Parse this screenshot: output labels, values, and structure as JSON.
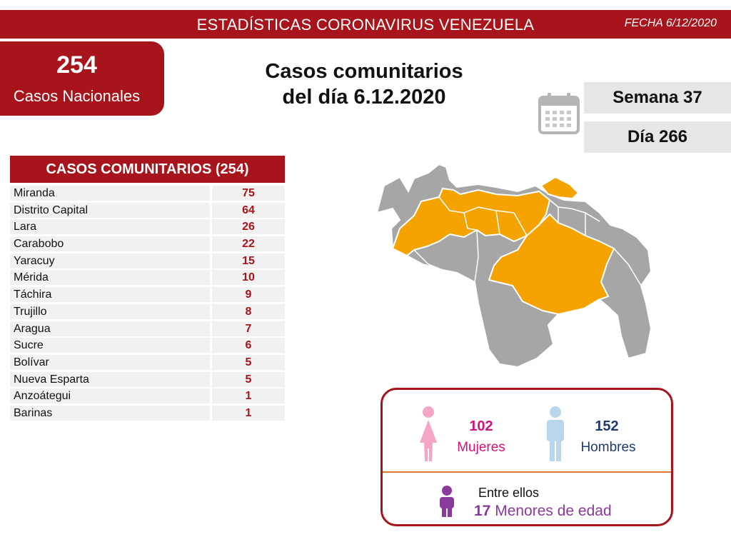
{
  "header": {
    "title": "ESTADÍSTICAS CORONAVIRUS VENEZUELA",
    "date": "FECHA 6/12/2020"
  },
  "national": {
    "count": "254",
    "label": "Casos Nacionales"
  },
  "main_title": {
    "line1": "Casos comunitarios",
    "line2": "del día 6.12.2020"
  },
  "calendar": {
    "icon": "calendar-icon",
    "week": "Semana 37",
    "day": "Día 266"
  },
  "table": {
    "title": "CASOS COMUNITARIOS (254)",
    "rows": [
      {
        "state": "Miranda",
        "cases": "75"
      },
      {
        "state": "Distrito Capital",
        "cases": "64"
      },
      {
        "state": "Lara",
        "cases": "26"
      },
      {
        "state": "Carabobo",
        "cases": "22"
      },
      {
        "state": "Yaracuy",
        "cases": "15"
      },
      {
        "state": "Mérida",
        "cases": "10"
      },
      {
        "state": "Táchira",
        "cases": "9"
      },
      {
        "state": "Trujillo",
        "cases": "8"
      },
      {
        "state": "Aragua",
        "cases": "7"
      },
      {
        "state": "Sucre",
        "cases": "6"
      },
      {
        "state": "Bolívar",
        "cases": "5"
      },
      {
        "state": "Nueva Esparta",
        "cases": "5"
      },
      {
        "state": "Anzoátegui",
        "cases": "1"
      },
      {
        "state": "Barinas",
        "cases": "1"
      }
    ]
  },
  "map": {
    "icon": "venezuela-map",
    "highlight_color": "#f4a300",
    "base_color": "#a6a6a6"
  },
  "gender": {
    "women_count": "102",
    "women_label": "Mujeres",
    "women_color": "#d4127b",
    "men_count": "152",
    "men_label": "Hombres",
    "men_color": "#1f3a6e",
    "minors_intro": "Entre ellos",
    "minors_count": "17",
    "minors_label": "Menores de edad",
    "minors_color": "#8a3a9a"
  },
  "colors": {
    "brand_red": "#a8141b",
    "divider_orange": "#e07a2a"
  }
}
